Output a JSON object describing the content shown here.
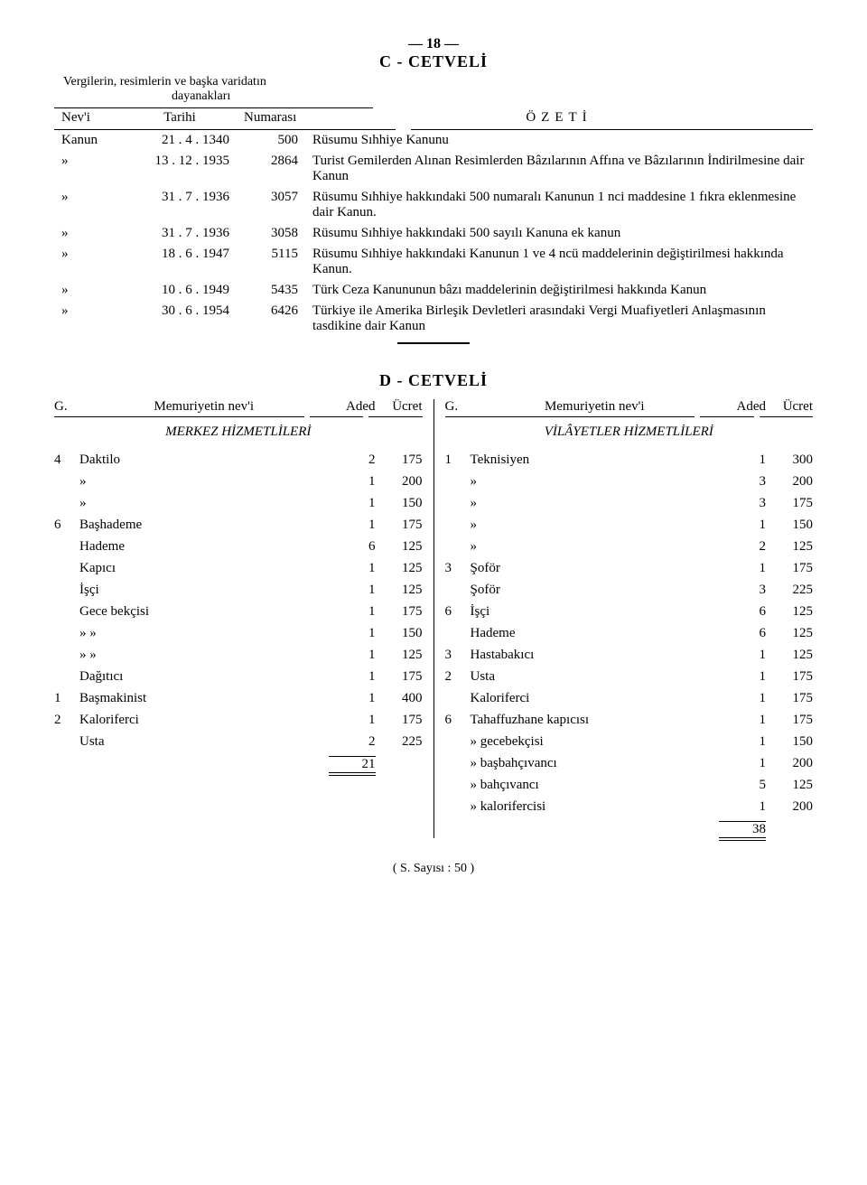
{
  "page_number": "— 18 —",
  "section_c": {
    "title": "C - CETVELİ",
    "subtitle_line1": "Vergilerin, resimlerin ve başka varidatın",
    "subtitle_line2": "dayanakları",
    "headers": {
      "nevi": "Nev'i",
      "tarih": "Tarihi",
      "numarasi": "Numarası",
      "ozeti": "ÖZETİ"
    },
    "rows": [
      {
        "nevi": "Kanun",
        "tarih": "21 . 4 . 1340",
        "num": "500",
        "ozet": "Rüsumu Sıhhiye Kanunu"
      },
      {
        "nevi": "»",
        "tarih": "13 . 12 . 1935",
        "num": "2864",
        "ozet": "Turist Gemilerden Alınan Resimlerden Bâzılarının Affına ve Bâzılarının İndirilmesine dair Kanun"
      },
      {
        "nevi": "»",
        "tarih": "31 . 7 . 1936",
        "num": "3057",
        "ozet": "Rüsumu Sıhhiye hakkındaki 500 numaralı Kanunun 1 nci maddesine 1 fıkra eklenmesine dair Kanun."
      },
      {
        "nevi": "»",
        "tarih": "31 . 7 . 1936",
        "num": "3058",
        "ozet": "Rüsumu Sıhhiye hakkındaki 500 sayılı Kanuna ek kanun"
      },
      {
        "nevi": "»",
        "tarih": "18 . 6 . 1947",
        "num": "5115",
        "ozet": "Rüsumu Sıhhiye hakkındaki Kanunun 1 ve 4 ncü maddelerinin değiştirilmesi hakkında Kanun."
      },
      {
        "nevi": "»",
        "tarih": "10 . 6 . 1949",
        "num": "5435",
        "ozet": "Türk Ceza Kanununun bâzı maddelerinin değiştirilmesi hakkında Kanun"
      },
      {
        "nevi": "»",
        "tarih": "30 . 6 . 1954",
        "num": "6426",
        "ozet": "Türkiye ile Amerika Birleşik Devletleri arasındaki Vergi Muafiyetleri Anlaşmasının tasdikine dair Kanun"
      }
    ]
  },
  "section_d": {
    "title": "D - CETVELİ",
    "headers": {
      "g": "G.",
      "name": "Memuriyetin nev'i",
      "aded": "Aded",
      "ucret": "Ücret"
    },
    "left": {
      "subhead": "MERKEZ HİZMETLİLERİ",
      "rows": [
        {
          "g": "4",
          "name": "Daktilo",
          "aded": "2",
          "ucret": "175"
        },
        {
          "g": "",
          "name": "»",
          "aded": "1",
          "ucret": "200"
        },
        {
          "g": "",
          "name": "»",
          "aded": "1",
          "ucret": "150"
        },
        {
          "g": "6",
          "name": "Başhademe",
          "aded": "1",
          "ucret": "175"
        },
        {
          "g": "",
          "name": "Hademe",
          "aded": "6",
          "ucret": "125"
        },
        {
          "g": "",
          "name": "Kapıcı",
          "aded": "1",
          "ucret": "125"
        },
        {
          "g": "",
          "name": "İşçi",
          "aded": "1",
          "ucret": "125"
        },
        {
          "g": "",
          "name": "Gece bekçisi",
          "aded": "1",
          "ucret": "175"
        },
        {
          "g": "",
          "name": "»       »",
          "aded": "1",
          "ucret": "150"
        },
        {
          "g": "",
          "name": "»       »",
          "aded": "1",
          "ucret": "125"
        },
        {
          "g": "",
          "name": "Dağıtıcı",
          "aded": "1",
          "ucret": "175"
        },
        {
          "g": "1",
          "name": "Başmakinist",
          "aded": "1",
          "ucret": "400"
        },
        {
          "g": "2",
          "name": "Kaloriferci",
          "aded": "1",
          "ucret": "175"
        },
        {
          "g": "",
          "name": "Usta",
          "aded": "2",
          "ucret": "225"
        }
      ],
      "total": "21"
    },
    "right": {
      "subhead": "VİLÂYETLER HİZMETLİLERİ",
      "rows": [
        {
          "g": "1",
          "name": "Teknisiyen",
          "aded": "1",
          "ucret": "300"
        },
        {
          "g": "",
          "name": "»",
          "aded": "3",
          "ucret": "200"
        },
        {
          "g": "",
          "name": "»",
          "aded": "3",
          "ucret": "175"
        },
        {
          "g": "",
          "name": "»",
          "aded": "1",
          "ucret": "150"
        },
        {
          "g": "",
          "name": "»",
          "aded": "2",
          "ucret": "125"
        },
        {
          "g": "3",
          "name": "Şoför",
          "aded": "1",
          "ucret": "175"
        },
        {
          "g": "",
          "name": "Şoför",
          "aded": "3",
          "ucret": "225"
        },
        {
          "g": "6",
          "name": "İşçi",
          "aded": "6",
          "ucret": "125"
        },
        {
          "g": "",
          "name": "Hademe",
          "aded": "6",
          "ucret": "125"
        },
        {
          "g": "3",
          "name": "Hastabakıcı",
          "aded": "1",
          "ucret": "125"
        },
        {
          "g": "2",
          "name": "Usta",
          "aded": "1",
          "ucret": "175"
        },
        {
          "g": "",
          "name": "Kaloriferci",
          "aded": "1",
          "ucret": "175"
        },
        {
          "g": "6",
          "name": "Tahaffuzhane kapıcısı",
          "aded": "1",
          "ucret": "175"
        },
        {
          "g": "",
          "name": "»          gecebekçisi",
          "aded": "1",
          "ucret": "150"
        },
        {
          "g": "",
          "name": "»          başbahçıvancı",
          "aded": "1",
          "ucret": "200"
        },
        {
          "g": "",
          "name": "»          bahçıvancı",
          "aded": "5",
          "ucret": "125"
        },
        {
          "g": "",
          "name": "»          kalorifercisi",
          "aded": "1",
          "ucret": "200"
        }
      ],
      "total": "38"
    }
  },
  "footer": "( S. Sayısı : 50 )"
}
